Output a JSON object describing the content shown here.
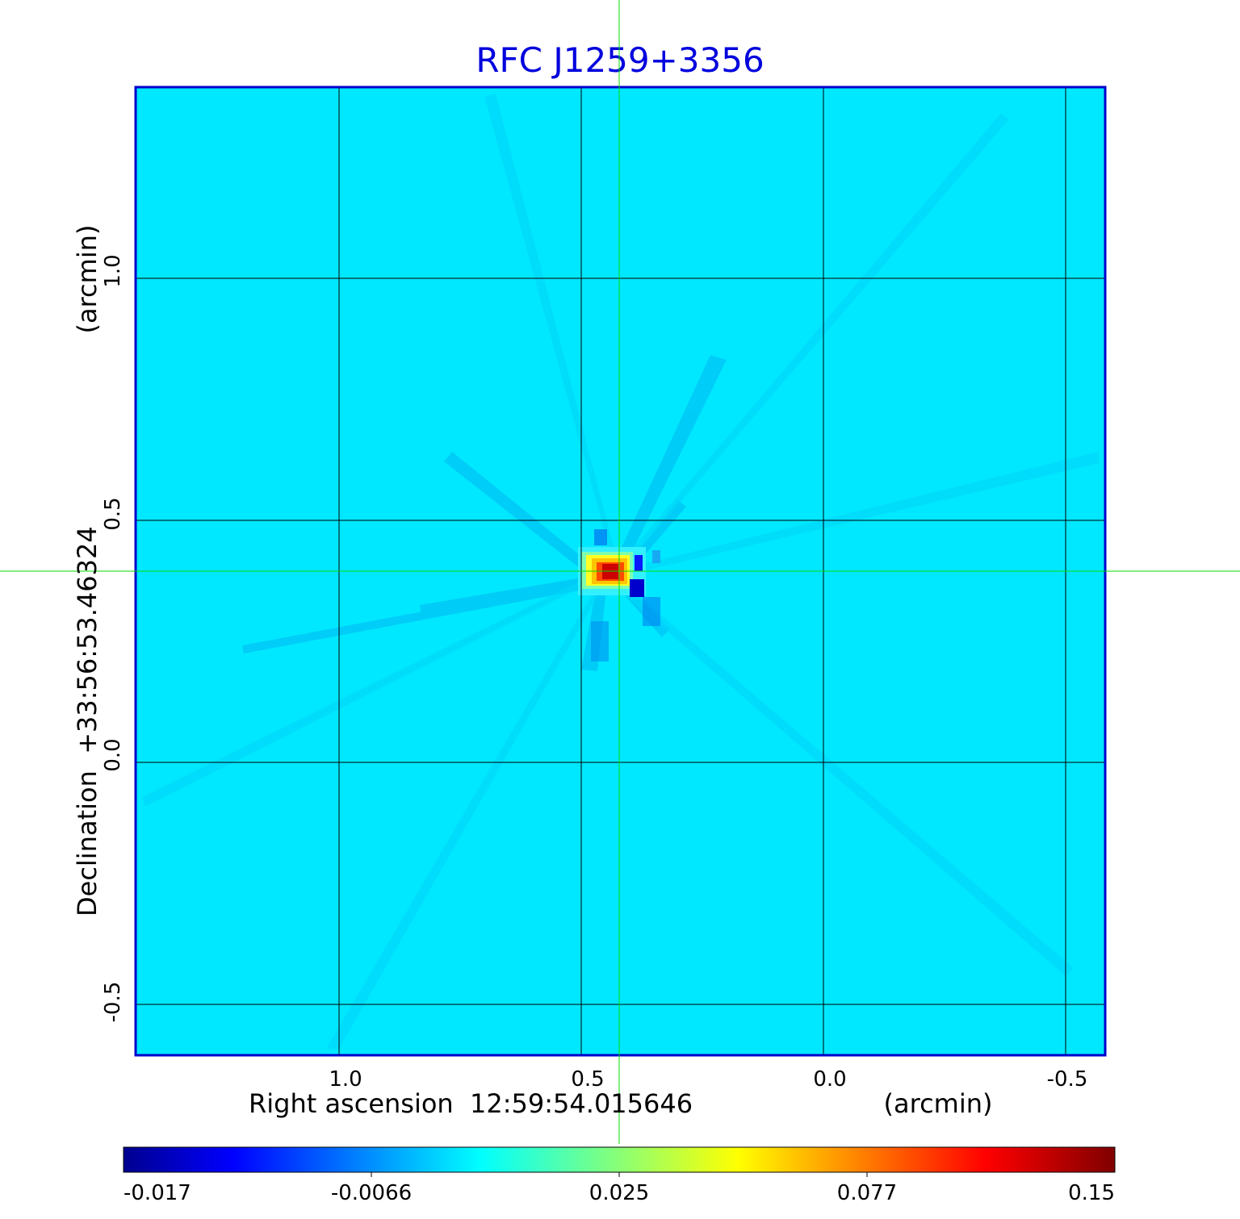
{
  "title": "RFC J1259+3356",
  "x_axis": {
    "label": "Right ascension  12:59:54.015646",
    "unit_label": "(arcmin)",
    "ticks": [
      "1.0",
      "0.5",
      "0.0",
      "-0.5"
    ]
  },
  "y_axis": {
    "label": "Declination  +33:56:53.46324",
    "unit_label": "(arcmin)",
    "ticks": [
      "1.0",
      "0.5",
      "0.0",
      "-0.5"
    ]
  },
  "colorbar": {
    "colormap": "jet",
    "ticks": [
      "-0.017",
      "-0.0066",
      "0.025",
      "0.077",
      "0.15"
    ]
  },
  "colors": {
    "title": "#0000dd",
    "frame": "#0000cc",
    "crosshair": "#00dd00",
    "grid": "#000000",
    "background_field": "#00e8ff"
  }
}
